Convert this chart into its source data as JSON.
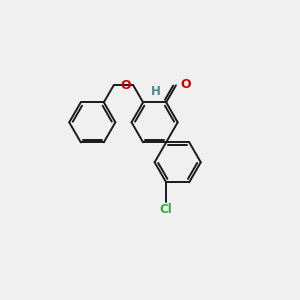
{
  "bg_color": "#f0f0f0",
  "bond_color": "#1a1a1a",
  "bond_width": 1.4,
  "figsize": [
    3.0,
    3.0
  ],
  "dpi": 100,
  "atom_colors": {
    "O": "#cc0000",
    "Cl": "#33aa33",
    "H": "#4a8888",
    "C": "#1a1a1a"
  }
}
